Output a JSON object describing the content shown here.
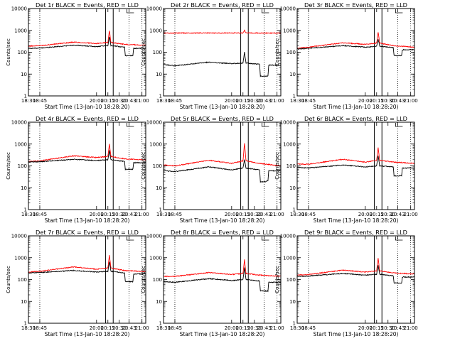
{
  "chart_data": {
    "type": "line",
    "layout": "3x3 grid",
    "grid": "dotted vertical lines at 18:45, 20:43 and 21:00",
    "y_scale": "log",
    "ylim": [
      1,
      10000
    ],
    "y_ticks": [
      "1",
      "10",
      "100",
      "1000",
      "10000"
    ],
    "x_time_range": [
      "18:30",
      "21:05"
    ],
    "x_ticks": [
      "18:30",
      "18:45",
      "20:00",
      "20:15",
      "20:30",
      "20:43",
      "21:00"
    ],
    "xlabel": "Start Time (13-Jan-10 18:28:20)",
    "ylabel": "Counts/sec",
    "markers": [
      "20:12",
      "20:22"
    ],
    "series_colors": {
      "events": "#000000",
      "lld": "#ff0000"
    },
    "panels": [
      {
        "title": "Det 1r BLACK = Events, RED = LLD",
        "events": [
          {
            "t": "18:30",
            "v": 150
          },
          {
            "t": "18:45",
            "v": 155
          },
          {
            "t": "19:30",
            "v": 210
          },
          {
            "t": "20:00",
            "v": 180
          },
          {
            "t": "20:15",
            "v": 200
          },
          {
            "t": "20:17",
            "v": 520
          },
          {
            "t": "20:19",
            "v": 200
          },
          {
            "t": "20:37",
            "v": 170
          },
          {
            "t": "20:38",
            "v": 70
          },
          {
            "t": "20:48",
            "v": 70
          },
          {
            "t": "20:49",
            "v": 150
          },
          {
            "t": "21:05",
            "v": 150
          }
        ],
        "lld": [
          {
            "t": "18:30",
            "v": 190
          },
          {
            "t": "18:45",
            "v": 200
          },
          {
            "t": "19:30",
            "v": 290
          },
          {
            "t": "20:00",
            "v": 250
          },
          {
            "t": "20:15",
            "v": 280
          },
          {
            "t": "20:17",
            "v": 1000
          },
          {
            "t": "20:19",
            "v": 280
          },
          {
            "t": "20:37",
            "v": 230
          },
          {
            "t": "21:05",
            "v": 210
          }
        ]
      },
      {
        "title": "Det 2r BLACK = Events, RED = LLD",
        "events": [
          {
            "t": "18:30",
            "v": 27
          },
          {
            "t": "18:45",
            "v": 24
          },
          {
            "t": "19:30",
            "v": 35
          },
          {
            "t": "20:00",
            "v": 30
          },
          {
            "t": "20:15",
            "v": 32
          },
          {
            "t": "20:17",
            "v": 100
          },
          {
            "t": "20:19",
            "v": 32
          },
          {
            "t": "20:37",
            "v": 28
          },
          {
            "t": "20:38",
            "v": 8
          },
          {
            "t": "20:48",
            "v": 8
          },
          {
            "t": "20:49",
            "v": 26
          },
          {
            "t": "21:05",
            "v": 25
          }
        ],
        "lld": [
          {
            "t": "18:30",
            "v": 750
          },
          {
            "t": "19:30",
            "v": 760
          },
          {
            "t": "20:15",
            "v": 760
          },
          {
            "t": "20:17",
            "v": 1000
          },
          {
            "t": "20:19",
            "v": 760
          },
          {
            "t": "21:05",
            "v": 750
          }
        ]
      },
      {
        "title": "Det 3r BLACK = Events, RED = LLD",
        "events": [
          {
            "t": "18:30",
            "v": 140
          },
          {
            "t": "18:45",
            "v": 150
          },
          {
            "t": "19:30",
            "v": 200
          },
          {
            "t": "20:00",
            "v": 170
          },
          {
            "t": "20:15",
            "v": 190
          },
          {
            "t": "20:17",
            "v": 400
          },
          {
            "t": "20:19",
            "v": 190
          },
          {
            "t": "20:37",
            "v": 160
          },
          {
            "t": "20:38",
            "v": 70
          },
          {
            "t": "20:48",
            "v": 70
          },
          {
            "t": "20:49",
            "v": 130
          },
          {
            "t": "21:05",
            "v": 130
          }
        ],
        "lld": [
          {
            "t": "18:30",
            "v": 150
          },
          {
            "t": "18:45",
            "v": 170
          },
          {
            "t": "19:30",
            "v": 270
          },
          {
            "t": "20:00",
            "v": 230
          },
          {
            "t": "20:15",
            "v": 260
          },
          {
            "t": "20:17",
            "v": 850
          },
          {
            "t": "20:19",
            "v": 260
          },
          {
            "t": "20:37",
            "v": 200
          },
          {
            "t": "21:05",
            "v": 170
          }
        ]
      },
      {
        "title": "Det 4r BLACK = Events, RED = LLD",
        "events": [
          {
            "t": "18:30",
            "v": 150
          },
          {
            "t": "18:45",
            "v": 155
          },
          {
            "t": "19:30",
            "v": 200
          },
          {
            "t": "20:00",
            "v": 175
          },
          {
            "t": "20:15",
            "v": 190
          },
          {
            "t": "20:17",
            "v": 500
          },
          {
            "t": "20:19",
            "v": 190
          },
          {
            "t": "20:37",
            "v": 160
          },
          {
            "t": "20:38",
            "v": 70
          },
          {
            "t": "20:48",
            "v": 70
          },
          {
            "t": "20:49",
            "v": 140
          },
          {
            "t": "21:05",
            "v": 140
          }
        ],
        "lld": [
          {
            "t": "18:30",
            "v": 160
          },
          {
            "t": "18:45",
            "v": 170
          },
          {
            "t": "19:30",
            "v": 290
          },
          {
            "t": "20:00",
            "v": 240
          },
          {
            "t": "20:15",
            "v": 270
          },
          {
            "t": "20:17",
            "v": 1000
          },
          {
            "t": "20:19",
            "v": 270
          },
          {
            "t": "20:37",
            "v": 210
          },
          {
            "t": "21:05",
            "v": 190
          }
        ]
      },
      {
        "title": "Det 5r BLACK = Events, RED = LLD",
        "events": [
          {
            "t": "18:30",
            "v": 60
          },
          {
            "t": "18:45",
            "v": 55
          },
          {
            "t": "19:30",
            "v": 90
          },
          {
            "t": "20:00",
            "v": 65
          },
          {
            "t": "20:15",
            "v": 80
          },
          {
            "t": "20:17",
            "v": 200
          },
          {
            "t": "20:19",
            "v": 80
          },
          {
            "t": "20:37",
            "v": 65
          },
          {
            "t": "20:38",
            "v": 18
          },
          {
            "t": "20:48",
            "v": 20
          },
          {
            "t": "20:49",
            "v": 60
          },
          {
            "t": "21:05",
            "v": 60
          }
        ],
        "lld": [
          {
            "t": "18:30",
            "v": 110
          },
          {
            "t": "18:45",
            "v": 100
          },
          {
            "t": "19:30",
            "v": 180
          },
          {
            "t": "20:00",
            "v": 130
          },
          {
            "t": "20:15",
            "v": 170
          },
          {
            "t": "20:17",
            "v": 1100
          },
          {
            "t": "20:19",
            "v": 170
          },
          {
            "t": "20:37",
            "v": 130
          },
          {
            "t": "21:05",
            "v": 100
          }
        ]
      },
      {
        "title": "Det 6r BLACK = Events, RED = LLD",
        "events": [
          {
            "t": "18:30",
            "v": 85
          },
          {
            "t": "18:45",
            "v": 80
          },
          {
            "t": "19:30",
            "v": 110
          },
          {
            "t": "20:00",
            "v": 90
          },
          {
            "t": "20:15",
            "v": 100
          },
          {
            "t": "20:17",
            "v": 300
          },
          {
            "t": "20:19",
            "v": 100
          },
          {
            "t": "20:37",
            "v": 90
          },
          {
            "t": "20:38",
            "v": 35
          },
          {
            "t": "20:48",
            "v": 35
          },
          {
            "t": "20:49",
            "v": 80
          },
          {
            "t": "21:05",
            "v": 80
          }
        ],
        "lld": [
          {
            "t": "18:30",
            "v": 120
          },
          {
            "t": "18:45",
            "v": 120
          },
          {
            "t": "19:30",
            "v": 200
          },
          {
            "t": "20:00",
            "v": 150
          },
          {
            "t": "20:15",
            "v": 180
          },
          {
            "t": "20:17",
            "v": 700
          },
          {
            "t": "20:19",
            "v": 180
          },
          {
            "t": "20:37",
            "v": 150
          },
          {
            "t": "21:05",
            "v": 130
          }
        ]
      },
      {
        "title": "Det 7r BLACK = Events, RED = LLD",
        "events": [
          {
            "t": "18:30",
            "v": 200
          },
          {
            "t": "18:45",
            "v": 210
          },
          {
            "t": "19:30",
            "v": 260
          },
          {
            "t": "20:00",
            "v": 220
          },
          {
            "t": "20:15",
            "v": 240
          },
          {
            "t": "20:17",
            "v": 650
          },
          {
            "t": "20:19",
            "v": 240
          },
          {
            "t": "20:37",
            "v": 200
          },
          {
            "t": "20:38",
            "v": 80
          },
          {
            "t": "20:48",
            "v": 80
          },
          {
            "t": "20:49",
            "v": 180
          },
          {
            "t": "21:05",
            "v": 180
          }
        ],
        "lld": [
          {
            "t": "18:30",
            "v": 220
          },
          {
            "t": "18:45",
            "v": 240
          },
          {
            "t": "19:30",
            "v": 380
          },
          {
            "t": "20:00",
            "v": 300
          },
          {
            "t": "20:15",
            "v": 340
          },
          {
            "t": "20:17",
            "v": 1300
          },
          {
            "t": "20:19",
            "v": 340
          },
          {
            "t": "20:37",
            "v": 260
          },
          {
            "t": "21:05",
            "v": 230
          }
        ]
      },
      {
        "title": "Det 8r BLACK = Events, RED = LLD",
        "events": [
          {
            "t": "18:30",
            "v": 80
          },
          {
            "t": "18:45",
            "v": 75
          },
          {
            "t": "19:30",
            "v": 110
          },
          {
            "t": "20:00",
            "v": 90
          },
          {
            "t": "20:15",
            "v": 100
          },
          {
            "t": "20:17",
            "v": 350
          },
          {
            "t": "20:19",
            "v": 100
          },
          {
            "t": "20:37",
            "v": 85
          },
          {
            "t": "20:38",
            "v": 30
          },
          {
            "t": "20:48",
            "v": 30
          },
          {
            "t": "20:49",
            "v": 75
          },
          {
            "t": "21:05",
            "v": 75
          }
        ],
        "lld": [
          {
            "t": "18:30",
            "v": 140
          },
          {
            "t": "18:45",
            "v": 140
          },
          {
            "t": "19:30",
            "v": 210
          },
          {
            "t": "20:00",
            "v": 170
          },
          {
            "t": "20:15",
            "v": 190
          },
          {
            "t": "20:17",
            "v": 800
          },
          {
            "t": "20:19",
            "v": 190
          },
          {
            "t": "20:37",
            "v": 160
          },
          {
            "t": "21:05",
            "v": 140
          }
        ]
      },
      {
        "title": "Det 9r BLACK = Events, RED = LLD",
        "events": [
          {
            "t": "18:30",
            "v": 140
          },
          {
            "t": "18:45",
            "v": 145
          },
          {
            "t": "19:30",
            "v": 190
          },
          {
            "t": "20:00",
            "v": 160
          },
          {
            "t": "20:15",
            "v": 175
          },
          {
            "t": "20:17",
            "v": 450
          },
          {
            "t": "20:19",
            "v": 175
          },
          {
            "t": "20:37",
            "v": 150
          },
          {
            "t": "20:38",
            "v": 70
          },
          {
            "t": "20:48",
            "v": 70
          },
          {
            "t": "20:49",
            "v": 130
          },
          {
            "t": "21:05",
            "v": 130
          }
        ],
        "lld": [
          {
            "t": "18:30",
            "v": 160
          },
          {
            "t": "18:45",
            "v": 170
          },
          {
            "t": "19:30",
            "v": 270
          },
          {
            "t": "20:00",
            "v": 220
          },
          {
            "t": "20:15",
            "v": 250
          },
          {
            "t": "20:17",
            "v": 950
          },
          {
            "t": "20:19",
            "v": 250
          },
          {
            "t": "20:37",
            "v": 200
          },
          {
            "t": "21:05",
            "v": 180
          }
        ]
      }
    ]
  }
}
